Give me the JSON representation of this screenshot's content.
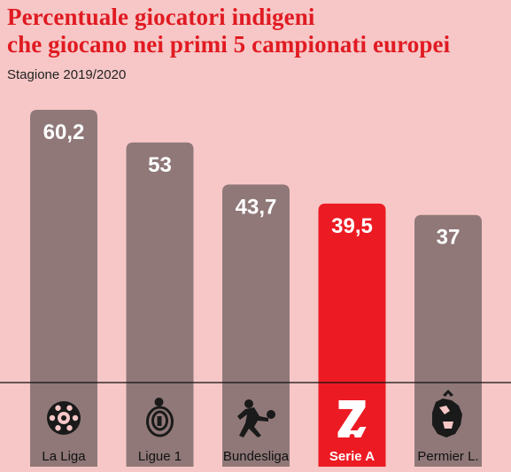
{
  "title_lines": [
    "Percentuale giocatori indigeni",
    "che giocano nei primi 5 campionati europei"
  ],
  "subtitle": "Stagione 2019/2020",
  "colors": {
    "background": "#f7c7c7",
    "bar": "#8a7474",
    "highlight": "#ec1b23",
    "title": "#e01b22"
  },
  "chart_data": {
    "type": "bar",
    "categories": [
      "La Liga",
      "Ligue 1",
      "Bundesliga",
      "Serie A",
      "Permier L."
    ],
    "values": [
      60.2,
      53,
      43.7,
      39.5,
      37
    ],
    "value_labels": [
      "60,2",
      "53",
      "43,7",
      "39,5",
      "37"
    ],
    "highlight": "Serie A",
    "icons": [
      "laliga-logo-icon",
      "ligue1-logo-icon",
      "bundesliga-logo-icon",
      "seriea-logo-icon",
      "premier-league-lion-icon"
    ],
    "title": "Percentuale giocatori indigeni che giocano nei primi 5 campionati europei",
    "subtitle": "Stagione 2019/2020",
    "xlabel": "",
    "ylabel": "",
    "ylim": [
      0,
      60.2
    ],
    "grid": false,
    "legend": "none"
  }
}
